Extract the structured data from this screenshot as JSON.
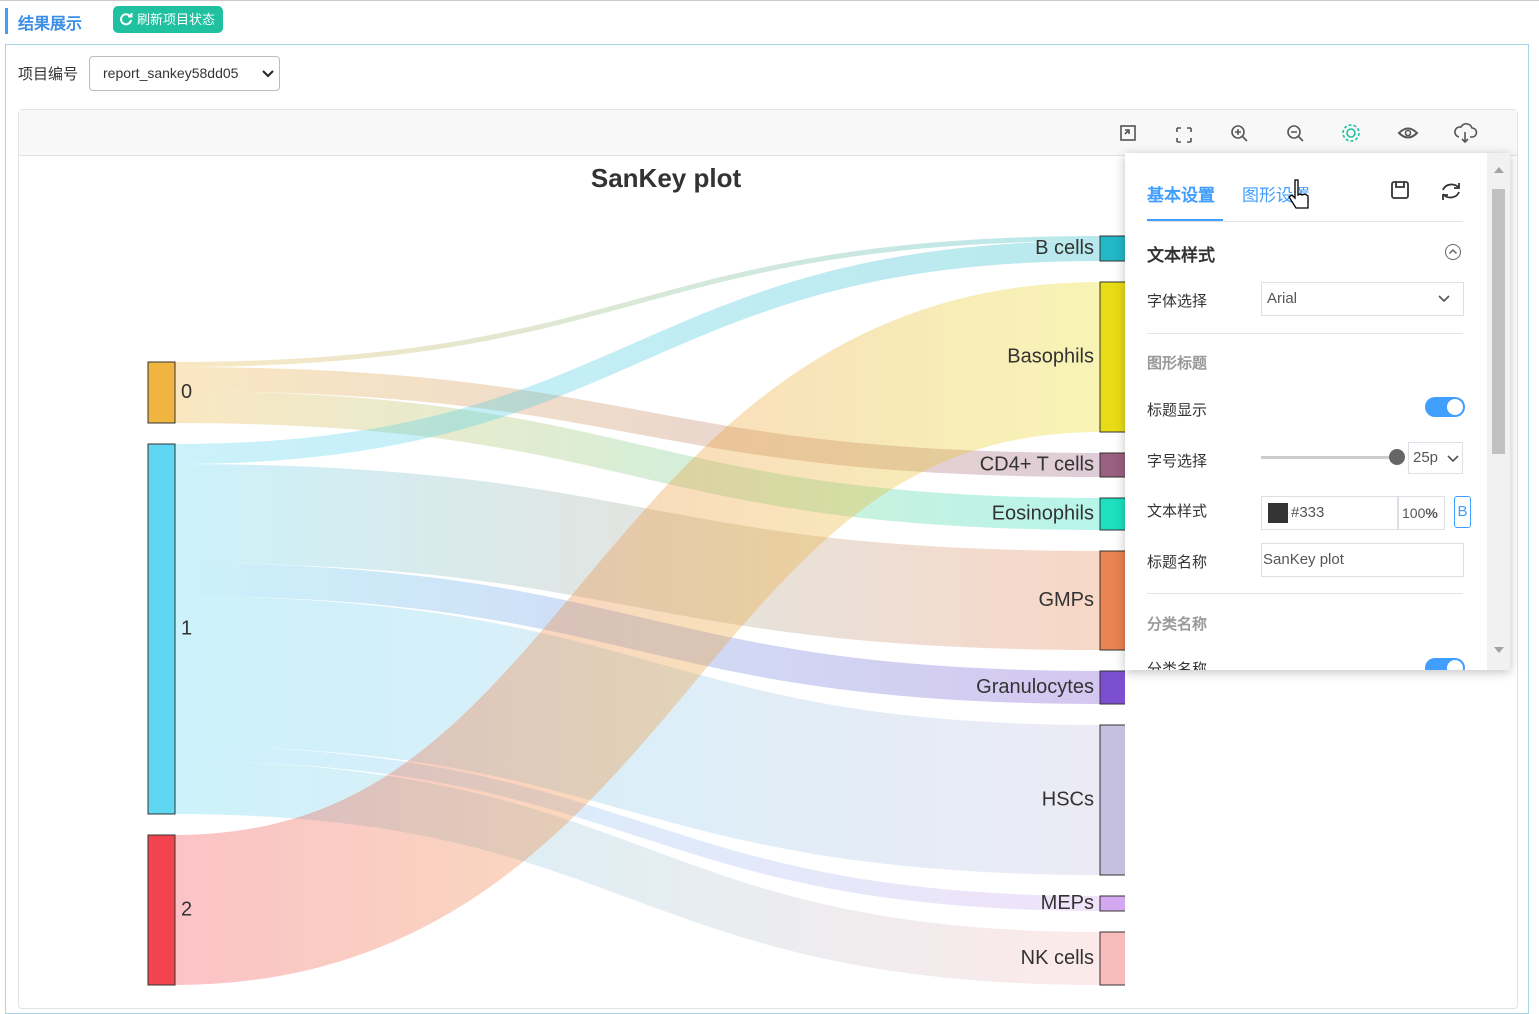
{
  "header": {
    "title": "结果展示",
    "refresh_button": "刷新项目状态"
  },
  "project": {
    "label": "项目编号",
    "value": "report_sankey58dd05"
  },
  "chart_data": {
    "type": "sankey",
    "title": "SanKey plot",
    "nodes": [
      {
        "name": "0",
        "color": "#f0b440"
      },
      {
        "name": "1",
        "color": "#5fd6f2"
      },
      {
        "name": "2",
        "color": "#f2444e"
      },
      {
        "name": "B cells",
        "color": "#22b8c6"
      },
      {
        "name": "Basophils",
        "color": "#e8dc17"
      },
      {
        "name": "CD4+ T cells",
        "color": "#9a6080"
      },
      {
        "name": "Eosinophils",
        "color": "#1de0c0"
      },
      {
        "name": "GMPs",
        "color": "#ea8450"
      },
      {
        "name": "Granulocytes",
        "color": "#7b4fd0"
      },
      {
        "name": "HSCs",
        "color": "#c5c0e0"
      },
      {
        "name": "MEPs",
        "color": "#d4a8f0"
      },
      {
        "name": "NK cells",
        "color": "#f8bcbc"
      }
    ],
    "links": [
      {
        "source": 0,
        "target": 3,
        "value": 5
      },
      {
        "source": 0,
        "target": 5,
        "value": 24
      },
      {
        "source": 0,
        "target": 6,
        "value": 32
      },
      {
        "source": 1,
        "target": 3,
        "value": 20
      },
      {
        "source": 1,
        "target": 7,
        "value": 99
      },
      {
        "source": 1,
        "target": 8,
        "value": 33
      },
      {
        "source": 1,
        "target": 9,
        "value": 150
      },
      {
        "source": 1,
        "target": 10,
        "value": 15
      },
      {
        "source": 1,
        "target": 11,
        "value": 53
      },
      {
        "source": 2,
        "target": 4,
        "value": 150
      }
    ]
  },
  "settings": {
    "tabs": [
      "基本设置",
      "图形设置"
    ],
    "text_style": "文本样式",
    "font_label": "字体选择",
    "font": "Arial",
    "title_section": "图形标题",
    "title_show": "标题显示",
    "font_size_label": "字号选择",
    "font_size": "25p",
    "text_style_label": "文本样式",
    "text_color": "#333",
    "opacity": "100",
    "opacity_unit": "%",
    "bold": "B",
    "title_name_label": "标题名称",
    "category_section": "分类名称",
    "category_show": "分类名称"
  }
}
